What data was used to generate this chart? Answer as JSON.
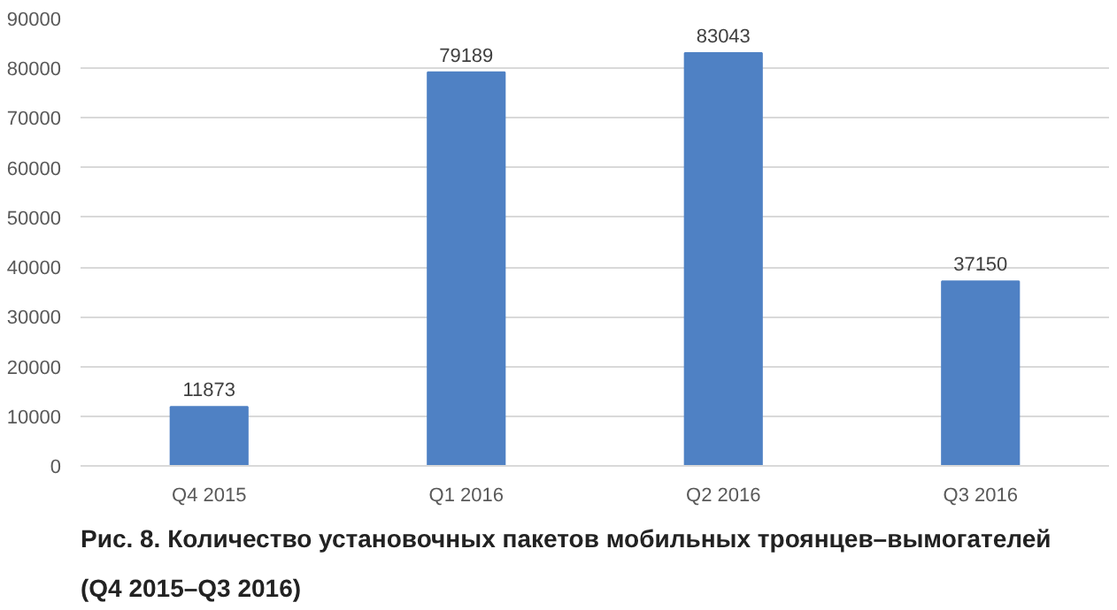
{
  "chart_data": {
    "type": "bar",
    "title": "Рис. 8. Количество установочных пакетов мобильных троянцев–вымогателей (Q4 2015–Q3 2016)",
    "categories": [
      "Q4 2015",
      "Q1 2016",
      "Q2 2016",
      "Q3 2016"
    ],
    "values": [
      11873,
      79189,
      83043,
      37150
    ],
    "color": "#4f81c4",
    "ylim": [
      0,
      90000
    ],
    "yticks": [
      0,
      10000,
      20000,
      30000,
      40000,
      50000,
      60000,
      70000,
      80000,
      90000
    ],
    "grid": "y",
    "data_labels": true
  }
}
